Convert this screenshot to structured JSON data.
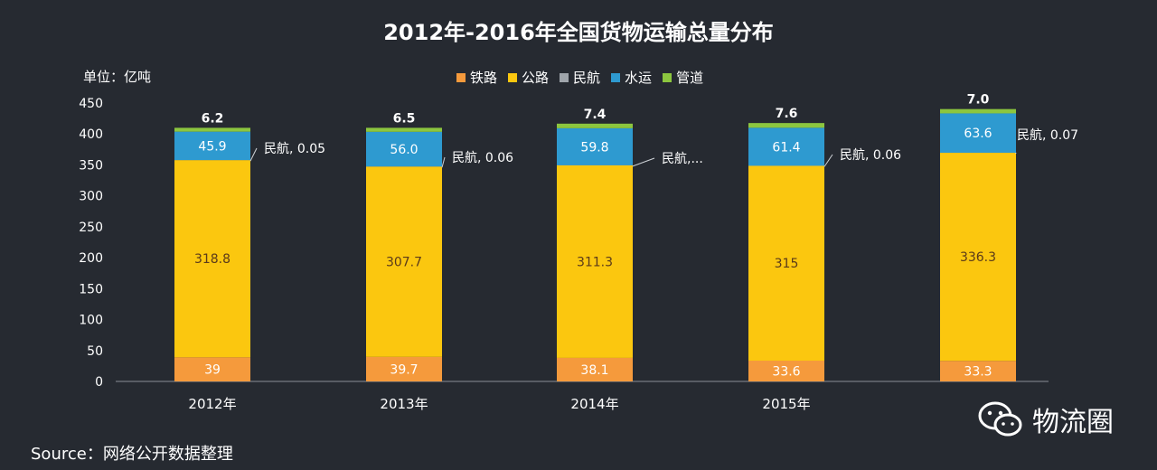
{
  "chart_data": {
    "type": "bar",
    "stacked": true,
    "title": "2012年-2016年全国货物运输总量分布",
    "unit_label": "单位：亿吨",
    "source": "Source：网络公开数据整理",
    "watermark": "物流圈",
    "categories": [
      "2012年",
      "2013年",
      "2014年",
      "2015年",
      ""
    ],
    "ylim": [
      0,
      450
    ],
    "yticks": [
      0,
      50,
      100,
      150,
      200,
      250,
      300,
      350,
      400,
      450
    ],
    "legend_position": "top",
    "grid": false,
    "series": [
      {
        "name": "铁路",
        "color": "#f59a3c",
        "values": [
          39,
          39.7,
          38.1,
          33.6,
          33.3
        ],
        "labels": [
          "39",
          "39.7",
          "38.1",
          "33.6",
          "33.3"
        ]
      },
      {
        "name": "公路",
        "color": "#fbc70f",
        "values": [
          318.8,
          307.7,
          311.3,
          315,
          336.3
        ],
        "labels": [
          "318.8",
          "307.7",
          "311.3",
          "315",
          "336.3"
        ]
      },
      {
        "name": "民航",
        "color": "#9fa5ab",
        "values": [
          0.05,
          0.06,
          0.06,
          0.06,
          0.07
        ],
        "labels": [
          "民航, 0.05",
          "民航, 0.06",
          "民航,...",
          "民航, 0.06",
          "民航, 0.07"
        ]
      },
      {
        "name": "水运",
        "color": "#2e9ad0",
        "values": [
          45.9,
          56.0,
          59.8,
          61.4,
          63.6
        ],
        "labels": [
          "45.9",
          "56.0",
          "59.8",
          "61.4",
          "63.6"
        ]
      },
      {
        "name": "管道",
        "color": "#8cc63f",
        "values": [
          6.2,
          6.5,
          7.4,
          7.6,
          7.0
        ],
        "labels": [
          "6.2",
          "6.5",
          "7.4",
          "7.6",
          "7.0"
        ]
      }
    ]
  }
}
